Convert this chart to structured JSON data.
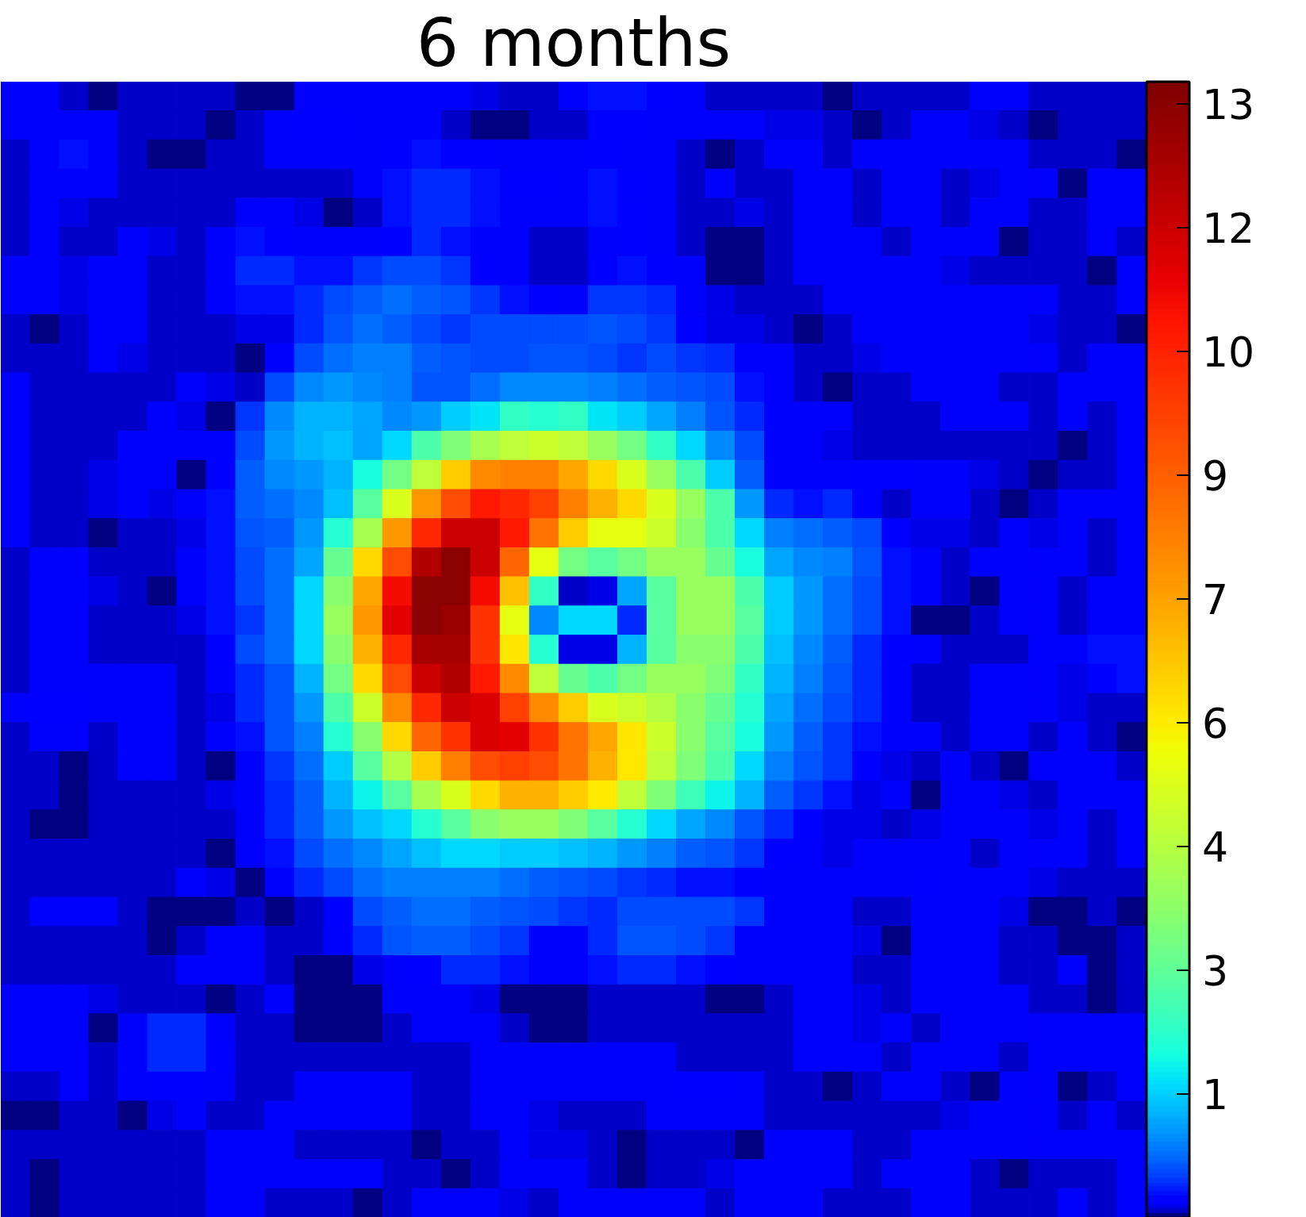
{
  "chart_data": {
    "type": "heatmap",
    "title": "6 months",
    "categories": [
      null,
      null,
      null,
      null,
      null,
      null,
      null,
      null,
      null,
      null,
      null,
      null,
      null,
      null,
      null,
      null,
      null,
      null,
      null,
      null,
      null,
      null,
      null,
      null,
      null,
      null,
      null,
      null,
      null,
      null,
      null,
      null,
      null,
      null,
      null,
      null,
      null,
      null,
      null
    ],
    "y_categories": [
      null,
      null,
      null,
      null,
      null,
      null,
      null,
      null,
      null,
      null,
      null,
      null,
      null,
      null,
      null,
      null,
      null,
      null,
      null,
      null,
      null,
      null,
      null,
      null,
      null,
      null,
      null,
      null,
      null,
      null,
      null,
      null,
      null,
      null,
      null,
      null,
      null,
      null,
      null
    ],
    "clim": [
      0,
      13.4
    ],
    "cticks": [
      {
        "value": 1.46,
        "label": "1"
      },
      {
        "value": 2.92,
        "label": "3"
      },
      {
        "value": 4.38,
        "label": "4"
      },
      {
        "value": 5.84,
        "label": "6"
      },
      {
        "value": 7.3,
        "label": "7"
      },
      {
        "value": 8.76,
        "label": "9"
      },
      {
        "value": 10.22,
        "label": "10"
      },
      {
        "value": 11.68,
        "label": "12"
      },
      {
        "value": 13.14,
        "label": "13"
      }
    ],
    "cells": [
      [
        0.18,
        0.18,
        0.1,
        0.01,
        0.08,
        0.08,
        0.1,
        0.08,
        0.03,
        0.05,
        0.18,
        0.18,
        0.18,
        0.18,
        0.18,
        0.18,
        0.14,
        0.08,
        0.1,
        0.2,
        0.3,
        0.3,
        0.25,
        0.2,
        0.1,
        0.06,
        0.06,
        0.08,
        0.03,
        0.1,
        0.1,
        0.08,
        0.08,
        0.18,
        0.18,
        0.08,
        0.08,
        0.08,
        0.1
      ],
      [
        0.18,
        0.18,
        0.18,
        0.2,
        0.08,
        0.06,
        0.06,
        0.0,
        0.1,
        0.18,
        0.22,
        0.22,
        0.18,
        0.18,
        0.18,
        0.1,
        0.03,
        0.02,
        0.1,
        0.08,
        0.25,
        0.25,
        0.2,
        0.18,
        0.18,
        0.18,
        0.14,
        0.14,
        0.08,
        0.03,
        0.08,
        0.18,
        0.18,
        0.14,
        0.1,
        0.05,
        0.08,
        0.08,
        0.08
      ],
      [
        0.08,
        0.18,
        0.3,
        0.2,
        0.08,
        0.01,
        0.03,
        0.06,
        0.08,
        0.18,
        0.18,
        0.18,
        0.18,
        0.25,
        0.3,
        0.25,
        0.25,
        0.2,
        0.18,
        0.18,
        0.25,
        0.2,
        0.18,
        0.08,
        0.01,
        0.08,
        0.18,
        0.18,
        0.08,
        0.18,
        0.18,
        0.18,
        0.18,
        0.18,
        0.18,
        0.08,
        0.08,
        0.06,
        0.03
      ],
      [
        0.08,
        0.2,
        0.2,
        0.2,
        0.08,
        0.08,
        0.08,
        0.08,
        0.1,
        0.1,
        0.08,
        0.1,
        0.18,
        0.3,
        0.41,
        0.41,
        0.3,
        0.25,
        0.25,
        0.18,
        0.3,
        0.25,
        0.18,
        0.06,
        0.18,
        0.1,
        0.08,
        0.18,
        0.18,
        0.1,
        0.18,
        0.18,
        0.08,
        0.14,
        0.2,
        0.18,
        0.05,
        0.2,
        0.2
      ],
      [
        0.08,
        0.18,
        0.14,
        0.08,
        0.1,
        0.08,
        0.1,
        0.1,
        0.18,
        0.18,
        0.14,
        0.01,
        0.1,
        0.3,
        0.41,
        0.41,
        0.3,
        0.18,
        0.18,
        0.18,
        0.3,
        0.25,
        0.18,
        0.08,
        0.08,
        0.14,
        0.08,
        0.18,
        0.18,
        0.06,
        0.18,
        0.18,
        0.08,
        0.2,
        0.18,
        0.1,
        0.1,
        0.2,
        0.2
      ],
      [
        0.08,
        0.18,
        0.1,
        0.08,
        0.18,
        0.14,
        0.08,
        0.18,
        0.3,
        0.25,
        0.18,
        0.18,
        0.18,
        0.25,
        0.41,
        0.3,
        0.18,
        0.18,
        0.1,
        0.08,
        0.2,
        0.25,
        0.2,
        0.08,
        0.05,
        0.05,
        0.1,
        0.18,
        0.18,
        0.18,
        0.08,
        0.18,
        0.18,
        0.18,
        0.01,
        0.08,
        0.1,
        0.18,
        0.1
      ],
      [
        0.18,
        0.18,
        0.14,
        0.18,
        0.18,
        0.1,
        0.1,
        0.2,
        0.41,
        0.41,
        0.3,
        0.3,
        0.47,
        0.54,
        0.54,
        0.47,
        0.25,
        0.18,
        0.1,
        0.1,
        0.25,
        0.3,
        0.25,
        0.18,
        0.03,
        0.03,
        0.08,
        0.18,
        0.18,
        0.18,
        0.18,
        0.18,
        0.14,
        0.08,
        0.08,
        0.08,
        0.08,
        0.02,
        0.18
      ],
      [
        0.18,
        0.18,
        0.14,
        0.18,
        0.18,
        0.1,
        0.1,
        0.18,
        0.3,
        0.3,
        0.41,
        0.54,
        0.68,
        0.76,
        0.68,
        0.61,
        0.47,
        0.3,
        0.25,
        0.2,
        0.47,
        0.47,
        0.41,
        0.18,
        0.14,
        0.08,
        0.08,
        0.1,
        0.18,
        0.18,
        0.18,
        0.18,
        0.18,
        0.18,
        0.18,
        0.18,
        0.08,
        0.08,
        0.18
      ],
      [
        0.08,
        0.03,
        0.1,
        0.18,
        0.18,
        0.1,
        0.08,
        0.1,
        0.14,
        0.14,
        0.41,
        0.61,
        0.76,
        0.68,
        0.54,
        0.47,
        0.54,
        0.54,
        0.54,
        0.54,
        0.61,
        0.54,
        0.47,
        0.25,
        0.14,
        0.14,
        0.08,
        0.03,
        0.06,
        0.18,
        0.18,
        0.18,
        0.18,
        0.18,
        0.18,
        0.14,
        0.08,
        0.1,
        0.01
      ],
      [
        0.1,
        0.1,
        0.1,
        0.18,
        0.14,
        0.08,
        0.1,
        0.1,
        0.03,
        0.18,
        0.54,
        0.76,
        0.84,
        0.84,
        0.68,
        0.61,
        0.54,
        0.54,
        0.61,
        0.61,
        0.54,
        0.47,
        0.54,
        0.47,
        0.41,
        0.2,
        0.2,
        0.08,
        0.08,
        0.14,
        0.18,
        0.18,
        0.18,
        0.18,
        0.18,
        0.18,
        0.08,
        0.18,
        0.18
      ],
      [
        0.18,
        0.1,
        0.08,
        0.1,
        0.08,
        0.1,
        0.18,
        0.14,
        0.1,
        0.54,
        0.92,
        1.01,
        0.92,
        0.84,
        0.61,
        0.61,
        0.76,
        0.92,
        0.92,
        0.92,
        0.84,
        0.76,
        0.68,
        0.61,
        0.54,
        0.3,
        0.2,
        0.08,
        0.01,
        0.08,
        0.1,
        0.18,
        0.18,
        0.18,
        0.08,
        0.1,
        0.18,
        0.18,
        0.18
      ],
      [
        0.18,
        0.08,
        0.06,
        0.08,
        0.1,
        0.18,
        0.14,
        0.03,
        0.47,
        0.92,
        1.21,
        1.21,
        1.1,
        0.92,
        1.01,
        1.42,
        1.64,
        2.27,
        2.1,
        2.27,
        1.64,
        1.42,
        1.1,
        0.84,
        0.61,
        0.41,
        0.2,
        0.2,
        0.2,
        0.1,
        0.08,
        0.08,
        0.18,
        0.18,
        0.18,
        0.08,
        0.18,
        0.1,
        0.2
      ],
      [
        0.18,
        0.08,
        0.06,
        0.1,
        0.18,
        0.2,
        0.18,
        0.18,
        0.54,
        1.01,
        1.21,
        1.31,
        1.1,
        1.53,
        2.63,
        3.42,
        4.1,
        4.55,
        4.79,
        4.55,
        3.85,
        3.2,
        2.27,
        1.53,
        0.92,
        0.54,
        0.2,
        0.2,
        0.14,
        0.08,
        0.06,
        0.08,
        0.06,
        0.06,
        0.08,
        0.08,
        0.0,
        0.1,
        0.18
      ],
      [
        0.18,
        0.1,
        0.1,
        0.14,
        0.18,
        0.18,
        0.0,
        0.25,
        0.68,
        0.92,
        1.01,
        1.21,
        1.95,
        3.2,
        4.55,
        6.45,
        7.8,
        8.05,
        8.05,
        7.2,
        6.2,
        5.05,
        3.85,
        2.63,
        1.42,
        0.68,
        0.2,
        0.18,
        0.2,
        0.25,
        0.25,
        0.2,
        0.18,
        0.14,
        0.08,
        0.01,
        0.08,
        0.08,
        0.18
      ],
      [
        0.18,
        0.1,
        0.1,
        0.14,
        0.18,
        0.14,
        0.18,
        0.3,
        0.68,
        0.76,
        0.92,
        1.31,
        2.8,
        5.05,
        7.5,
        9.2,
        10.45,
        10.1,
        9.5,
        8.05,
        6.97,
        6.2,
        5.05,
        3.85,
        2.63,
        1.01,
        0.41,
        0.3,
        0.41,
        0.25,
        0.1,
        0.18,
        0.18,
        0.06,
        0.01,
        0.08,
        0.18,
        0.18,
        0.18
      ],
      [
        0.18,
        0.08,
        0.1,
        0.01,
        0.08,
        0.08,
        0.14,
        0.3,
        0.61,
        0.68,
        1.01,
        2.1,
        4.1,
        7.5,
        10.1,
        11.7,
        11.7,
        10.45,
        8.3,
        6.45,
        5.3,
        5.3,
        4.79,
        3.6,
        2.63,
        1.53,
        0.84,
        0.76,
        0.68,
        0.54,
        0.25,
        0.14,
        0.14,
        0.08,
        0.18,
        0.14,
        0.18,
        0.08,
        0.18
      ],
      [
        0.1,
        0.18,
        0.18,
        0.1,
        0.08,
        0.08,
        0.18,
        0.3,
        0.54,
        0.76,
        1.1,
        3.0,
        6.2,
        9.2,
        12.25,
        13.1,
        11.7,
        8.6,
        5.3,
        3.2,
        2.8,
        3.2,
        3.85,
        3.85,
        3.0,
        1.95,
        1.1,
        0.92,
        0.84,
        0.61,
        0.3,
        0.18,
        0.1,
        0.18,
        0.2,
        0.2,
        0.18,
        0.08,
        0.18
      ],
      [
        0.1,
        0.18,
        0.2,
        0.14,
        0.08,
        0.03,
        0.18,
        0.3,
        0.54,
        0.76,
        1.53,
        3.6,
        7.2,
        10.8,
        13.1,
        13.1,
        10.8,
        6.7,
        2.27,
        0.1,
        0.13,
        1.1,
        2.8,
        3.85,
        3.85,
        2.63,
        1.42,
        1.01,
        0.76,
        0.54,
        0.3,
        0.18,
        0.08,
        0.03,
        0.18,
        0.18,
        0.1,
        0.18,
        0.18
      ],
      [
        0.1,
        0.2,
        0.2,
        0.1,
        0.08,
        0.08,
        0.14,
        0.3,
        0.47,
        0.76,
        1.53,
        3.85,
        7.5,
        11.15,
        13.1,
        12.8,
        9.8,
        5.3,
        0.92,
        1.53,
        1.53,
        0.41,
        2.8,
        3.85,
        3.85,
        2.8,
        1.42,
        1.01,
        0.76,
        0.54,
        0.3,
        0.01,
        0.03,
        0.1,
        0.18,
        0.18,
        0.08,
        0.2,
        0.2
      ],
      [
        0.06,
        0.18,
        0.18,
        0.1,
        0.1,
        0.08,
        0.08,
        0.25,
        0.54,
        0.76,
        1.53,
        3.6,
        6.97,
        10.1,
        12.5,
        12.5,
        9.8,
        5.96,
        2.1,
        0.13,
        0.13,
        1.21,
        2.8,
        3.6,
        3.6,
        2.63,
        1.31,
        0.92,
        0.68,
        0.41,
        0.25,
        0.18,
        0.08,
        0.08,
        0.08,
        0.18,
        0.2,
        0.3,
        0.3
      ],
      [
        0.08,
        0.2,
        0.2,
        0.18,
        0.18,
        0.18,
        0.08,
        0.18,
        0.41,
        0.61,
        1.21,
        3.2,
        6.2,
        9.2,
        11.7,
        12.25,
        10.45,
        7.8,
        4.55,
        3.0,
        2.63,
        3.2,
        3.85,
        3.85,
        3.42,
        2.27,
        1.21,
        0.84,
        0.61,
        0.41,
        0.18,
        0.08,
        0.08,
        0.18,
        0.18,
        0.2,
        0.14,
        0.25,
        0.3
      ],
      [
        0.18,
        0.25,
        0.25,
        0.18,
        0.18,
        0.18,
        0.08,
        0.14,
        0.41,
        0.61,
        1.01,
        2.63,
        4.79,
        7.8,
        10.1,
        11.7,
        11.4,
        9.5,
        7.8,
        6.45,
        5.05,
        4.79,
        4.31,
        3.6,
        3.0,
        2.1,
        1.1,
        0.76,
        0.54,
        0.41,
        0.18,
        0.1,
        0.08,
        0.18,
        0.18,
        0.18,
        0.14,
        0.1,
        0.06
      ],
      [
        0.1,
        0.2,
        0.2,
        0.1,
        0.18,
        0.18,
        0.08,
        0.18,
        0.3,
        0.61,
        0.84,
        2.1,
        3.6,
        6.2,
        8.6,
        9.8,
        11.4,
        11.15,
        9.8,
        8.3,
        7.2,
        5.96,
        4.79,
        3.6,
        2.8,
        1.95,
        1.01,
        0.68,
        0.47,
        0.3,
        0.18,
        0.18,
        0.08,
        0.18,
        0.18,
        0.1,
        0.18,
        0.08,
        0.05
      ],
      [
        0.08,
        0.06,
        0.03,
        0.08,
        0.18,
        0.18,
        0.08,
        0.05,
        0.18,
        0.47,
        0.76,
        1.42,
        2.8,
        4.31,
        6.45,
        8.05,
        9.2,
        9.5,
        9.2,
        8.3,
        6.97,
        5.96,
        4.55,
        3.42,
        2.63,
        1.53,
        0.84,
        0.61,
        0.47,
        0.25,
        0.14,
        0.08,
        0.18,
        0.1,
        0.05,
        0.18,
        0.18,
        0.18,
        0.1
      ],
      [
        0.08,
        0.08,
        0.05,
        0.08,
        0.08,
        0.08,
        0.08,
        0.14,
        0.18,
        0.41,
        0.68,
        1.21,
        1.8,
        2.8,
        4.1,
        5.05,
        6.2,
        6.97,
        6.97,
        6.45,
        5.9,
        4.55,
        3.42,
        2.45,
        1.8,
        1.21,
        0.68,
        0.47,
        0.3,
        0.14,
        0.18,
        0.0,
        0.2,
        0.2,
        0.14,
        0.1,
        0.2,
        0.18,
        0.18
      ],
      [
        0.06,
        0.0,
        0.05,
        0.06,
        0.06,
        0.08,
        0.06,
        0.1,
        0.18,
        0.41,
        0.68,
        1.01,
        1.31,
        1.53,
        2.1,
        2.8,
        3.6,
        3.85,
        3.85,
        3.42,
        2.8,
        2.1,
        1.53,
        1.1,
        0.92,
        0.61,
        0.41,
        0.25,
        0.14,
        0.14,
        0.1,
        0.14,
        0.18,
        0.18,
        0.18,
        0.14,
        0.18,
        0.1,
        0.18
      ],
      [
        0.08,
        0.06,
        0.06,
        0.06,
        0.08,
        0.1,
        0.1,
        0.05,
        0.18,
        0.3,
        0.54,
        0.76,
        0.92,
        1.1,
        1.31,
        1.53,
        1.53,
        1.42,
        1.42,
        1.31,
        1.21,
        1.01,
        0.84,
        0.68,
        0.61,
        0.47,
        0.25,
        0.18,
        0.14,
        0.18,
        0.2,
        0.2,
        0.18,
        0.08,
        0.18,
        0.2,
        0.18,
        0.1,
        0.18
      ],
      [
        0.06,
        0.08,
        0.1,
        0.08,
        0.08,
        0.1,
        0.18,
        0.14,
        0.05,
        0.2,
        0.41,
        0.54,
        0.76,
        0.84,
        0.84,
        0.84,
        0.84,
        0.76,
        0.68,
        0.61,
        0.54,
        0.47,
        0.41,
        0.3,
        0.3,
        0.25,
        0.18,
        0.18,
        0.18,
        0.18,
        0.2,
        0.25,
        0.18,
        0.18,
        0.18,
        0.14,
        0.08,
        0.08,
        0.08
      ],
      [
        0.08,
        0.18,
        0.18,
        0.18,
        0.1,
        0.05,
        0.02,
        0.03,
        0.06,
        0.05,
        0.1,
        0.25,
        0.54,
        0.68,
        0.76,
        0.76,
        0.68,
        0.61,
        0.54,
        0.47,
        0.41,
        0.54,
        0.54,
        0.54,
        0.54,
        0.47,
        0.18,
        0.18,
        0.18,
        0.08,
        0.08,
        0.18,
        0.18,
        0.18,
        0.14,
        0.05,
        0.03,
        0.1,
        0.05
      ],
      [
        0.08,
        0.1,
        0.1,
        0.08,
        0.08,
        0.05,
        0.1,
        0.18,
        0.18,
        0.1,
        0.06,
        0.18,
        0.41,
        0.61,
        0.68,
        0.68,
        0.54,
        0.47,
        0.18,
        0.18,
        0.41,
        0.61,
        0.61,
        0.54,
        0.47,
        0.18,
        0.18,
        0.18,
        0.18,
        0.14,
        0.01,
        0.18,
        0.18,
        0.18,
        0.08,
        0.08,
        0.05,
        0.0,
        0.08
      ],
      [
        0.08,
        0.1,
        0.08,
        0.08,
        0.06,
        0.08,
        0.18,
        0.18,
        0.18,
        0.08,
        0.03,
        0.05,
        0.14,
        0.18,
        0.25,
        0.41,
        0.41,
        0.3,
        0.18,
        0.18,
        0.3,
        0.41,
        0.41,
        0.3,
        0.25,
        0.18,
        0.18,
        0.18,
        0.18,
        0.08,
        0.08,
        0.18,
        0.18,
        0.18,
        0.08,
        0.08,
        0.18,
        0.03,
        0.1
      ],
      [
        0.18,
        0.18,
        0.18,
        0.14,
        0.06,
        0.08,
        0.08,
        0.01,
        0.1,
        0.18,
        0.02,
        0.01,
        0.05,
        0.18,
        0.18,
        0.18,
        0.14,
        0.03,
        0.03,
        0.0,
        0.08,
        0.1,
        0.1,
        0.08,
        0.05,
        0.01,
        0.08,
        0.18,
        0.18,
        0.14,
        0.08,
        0.18,
        0.18,
        0.18,
        0.18,
        0.1,
        0.08,
        0.03,
        0.1
      ],
      [
        0.18,
        0.2,
        0.2,
        0.03,
        0.18,
        0.41,
        0.41,
        0.18,
        0.1,
        0.1,
        0.05,
        0.02,
        0.02,
        0.08,
        0.18,
        0.18,
        0.18,
        0.08,
        0.05,
        0.05,
        0.08,
        0.1,
        0.08,
        0.08,
        0.1,
        0.08,
        0.1,
        0.18,
        0.18,
        0.14,
        0.18,
        0.08,
        0.18,
        0.18,
        0.18,
        0.18,
        0.18,
        0.2,
        0.18
      ],
      [
        0.18,
        0.2,
        0.18,
        0.06,
        0.18,
        0.41,
        0.41,
        0.25,
        0.1,
        0.1,
        0.08,
        0.08,
        0.08,
        0.08,
        0.08,
        0.1,
        0.18,
        0.18,
        0.18,
        0.18,
        0.18,
        0.18,
        0.18,
        0.08,
        0.08,
        0.08,
        0.1,
        0.18,
        0.18,
        0.18,
        0.08,
        0.18,
        0.18,
        0.18,
        0.1,
        0.18,
        0.18,
        0.18,
        0.18
      ],
      [
        0.1,
        0.1,
        0.18,
        0.1,
        0.18,
        0.25,
        0.25,
        0.18,
        0.08,
        0.1,
        0.18,
        0.18,
        0.18,
        0.18,
        0.08,
        0.1,
        0.18,
        0.18,
        0.18,
        0.18,
        0.18,
        0.18,
        0.2,
        0.25,
        0.25,
        0.18,
        0.1,
        0.08,
        0.05,
        0.08,
        0.18,
        0.18,
        0.1,
        0.01,
        0.18,
        0.18,
        0.01,
        0.08,
        0.18
      ],
      [
        0.05,
        0.05,
        0.08,
        0.08,
        0.01,
        0.14,
        0.18,
        0.1,
        0.1,
        0.18,
        0.18,
        0.18,
        0.18,
        0.18,
        0.06,
        0.08,
        0.18,
        0.18,
        0.14,
        0.08,
        0.08,
        0.1,
        0.18,
        0.18,
        0.2,
        0.18,
        0.08,
        0.08,
        0.08,
        0.1,
        0.1,
        0.1,
        0.14,
        0.18,
        0.18,
        0.18,
        0.08,
        0.18,
        0.1
      ],
      [
        0.08,
        0.08,
        0.08,
        0.08,
        0.08,
        0.08,
        0.1,
        0.18,
        0.18,
        0.18,
        0.1,
        0.1,
        0.08,
        0.1,
        0.05,
        0.06,
        0.1,
        0.18,
        0.14,
        0.14,
        0.08,
        0.01,
        0.08,
        0.1,
        0.08,
        0.03,
        0.18,
        0.18,
        0.18,
        0.08,
        0.08,
        0.18,
        0.18,
        0.18,
        0.18,
        0.2,
        0.2,
        0.18,
        0.18
      ],
      [
        0.06,
        0.05,
        0.06,
        0.06,
        0.08,
        0.08,
        0.1,
        0.18,
        0.18,
        0.18,
        0.18,
        0.18,
        0.18,
        0.1,
        0.1,
        0.03,
        0.1,
        0.18,
        0.18,
        0.18,
        0.08,
        0.01,
        0.08,
        0.08,
        0.14,
        0.18,
        0.18,
        0.18,
        0.18,
        0.1,
        0.18,
        0.18,
        0.18,
        0.06,
        0.03,
        0.08,
        0.08,
        0.1,
        0.18
      ],
      [
        0.08,
        0.03,
        0.06,
        0.08,
        0.08,
        0.08,
        0.1,
        0.18,
        0.18,
        0.1,
        0.08,
        0.06,
        0.03,
        0.1,
        0.18,
        0.18,
        0.18,
        0.14,
        0.1,
        0.18,
        0.18,
        0.18,
        0.18,
        0.18,
        0.1,
        0.18,
        0.18,
        0.18,
        0.1,
        0.08,
        0.08,
        0.18,
        0.18,
        0.1,
        0.08,
        0.08,
        0.18,
        0.1,
        0.18
      ]
    ]
  }
}
